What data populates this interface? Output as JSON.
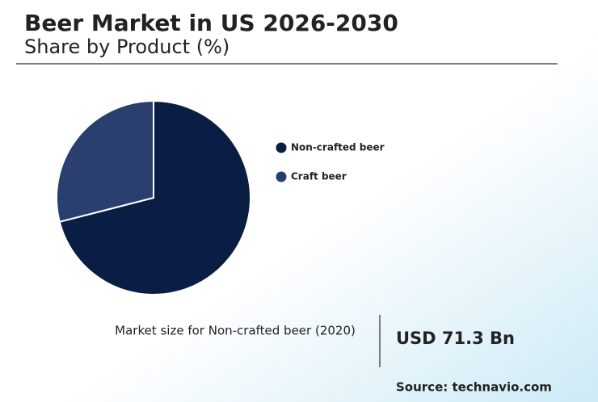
{
  "chart_data": {
    "type": "pie",
    "title": "Beer Market in US 2026-2030",
    "subtitle": "Share by Product (%)",
    "categories": [
      "Non-crafted beer",
      "Craft beer"
    ],
    "values": [
      71,
      29
    ],
    "colors": [
      "#0a1d44",
      "#2b3f6f"
    ],
    "annotation": {
      "label": "Market size for Non-crafted beer (2020)",
      "value": "USD 71.3 Bn"
    },
    "source": "Source: technavio.com"
  }
}
